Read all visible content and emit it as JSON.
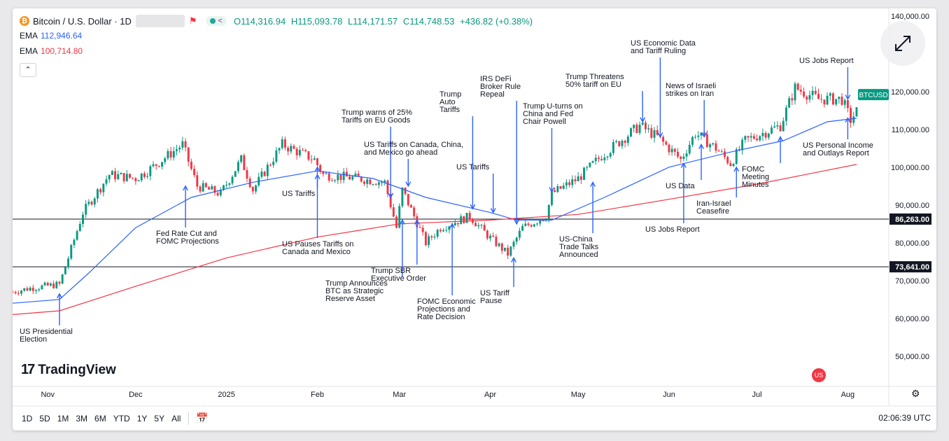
{
  "header": {
    "symbol_title": "Bitcoin / U.S. Dollar · 1D",
    "coin_glyph": "₿",
    "ohlc": {
      "open": "O114,316.94",
      "high": "H115,093.78",
      "low": "L114,171.57",
      "close": "C114,748.53",
      "change": "+436.82 (+0.38%)"
    },
    "ema1_label": "EMA",
    "ema1_value": "112,946.64",
    "ema2_label": "EMA",
    "ema2_value": "100,714.80",
    "collapse_glyph": "⌃"
  },
  "brand": {
    "logo_mark": "17",
    "logo_text": "TradingView"
  },
  "toolbar": {
    "ranges": [
      "1D",
      "5D",
      "1M",
      "3M",
      "6M",
      "YTD",
      "1Y",
      "5Y",
      "All"
    ],
    "clock": "02:06:39 UTC"
  },
  "colors": {
    "up": "#089981",
    "down": "#f23645",
    "ema_fast": "#2962ff",
    "ema_slow": "#f23645",
    "annotation": "#2962ff",
    "price_badge": "#089981"
  },
  "chart_data": {
    "type": "candlestick",
    "title": "Bitcoin / U.S. Dollar · 1D",
    "y_axis": {
      "ticks": [
        "140,000.00",
        "120,000.00",
        "110,000.00",
        "100,000.00",
        "90,000.00",
        "80,000.00",
        "70,000.00",
        "60,000.00",
        "50,000.00"
      ],
      "ylim": [
        42000,
        142000
      ],
      "side": "right"
    },
    "x_axis": {
      "ticks": [
        "Nov",
        "Dec",
        "2025",
        "Feb",
        "Mar",
        "Apr",
        "May",
        "Jun",
        "Jul",
        "Aug"
      ]
    },
    "current_price_label": "BTCUSD",
    "horizontal_levels": [
      {
        "value": 86263,
        "label": "86,263.00"
      },
      {
        "value": 73641,
        "label": "73,641.00"
      }
    ],
    "close_path": [
      [
        "2024-10-20",
        67000
      ],
      [
        "2024-10-26",
        68000
      ],
      [
        "2024-11-05",
        69000
      ],
      [
        "2024-11-08",
        76000
      ],
      [
        "2024-11-13",
        88000
      ],
      [
        "2024-11-22",
        98000
      ],
      [
        "2024-12-01",
        97000
      ],
      [
        "2024-12-05",
        99000
      ],
      [
        "2024-12-17",
        106000
      ],
      [
        "2024-12-22",
        95000
      ],
      [
        "2024-12-30",
        93000
      ],
      [
        "2025-01-06",
        102000
      ],
      [
        "2025-01-10",
        94000
      ],
      [
        "2025-01-20",
        106000
      ],
      [
        "2025-01-31",
        102000
      ],
      [
        "2025-02-03",
        98000
      ],
      [
        "2025-02-15",
        97000
      ],
      [
        "2025-02-24",
        96000
      ],
      [
        "2025-02-28",
        84000
      ],
      [
        "2025-03-02",
        94000
      ],
      [
        "2025-03-10",
        80000
      ],
      [
        "2025-03-15",
        84000
      ],
      [
        "2025-03-25",
        87000
      ],
      [
        "2025-03-31",
        82000
      ],
      [
        "2025-04-07",
        77000
      ],
      [
        "2025-04-12",
        84000
      ],
      [
        "2025-04-20",
        87000
      ],
      [
        "2025-04-22",
        93000
      ],
      [
        "2025-05-01",
        97000
      ],
      [
        "2025-05-09",
        103000
      ],
      [
        "2025-05-22",
        111000
      ],
      [
        "2025-05-28",
        108000
      ],
      [
        "2025-06-05",
        102000
      ],
      [
        "2025-06-10",
        109000
      ],
      [
        "2025-06-17",
        105000
      ],
      [
        "2025-06-22",
        101000
      ],
      [
        "2025-06-27",
        107000
      ],
      [
        "2025-07-09",
        111000
      ],
      [
        "2025-07-14",
        121000
      ],
      [
        "2025-07-22",
        118000
      ],
      [
        "2025-07-30",
        118000
      ],
      [
        "2025-08-02",
        112500
      ],
      [
        "2025-08-04",
        114748
      ]
    ],
    "series": [
      {
        "name": "EMA",
        "last_value": 112946.64,
        "points": [
          [
            "2024-10-20",
            64000
          ],
          [
            "2024-11-05",
            65000
          ],
          [
            "2024-11-15",
            72000
          ],
          [
            "2024-12-01",
            84000
          ],
          [
            "2024-12-20",
            92000
          ],
          [
            "2025-01-10",
            96000
          ],
          [
            "2025-02-01",
            99000
          ],
          [
            "2025-02-20",
            97000
          ],
          [
            "2025-03-10",
            92000
          ],
          [
            "2025-04-01",
            88000
          ],
          [
            "2025-04-10",
            86000
          ],
          [
            "2025-04-22",
            86000
          ],
          [
            "2025-05-10",
            92000
          ],
          [
            "2025-06-01",
            100000
          ],
          [
            "2025-06-22",
            104000
          ],
          [
            "2025-07-10",
            107000
          ],
          [
            "2025-07-25",
            112000
          ],
          [
            "2025-08-04",
            112946
          ]
        ]
      },
      {
        "name": "EMA",
        "last_value": 100714.8,
        "points": [
          [
            "2024-10-20",
            61000
          ],
          [
            "2024-11-05",
            62000
          ],
          [
            "2024-12-01",
            68500
          ],
          [
            "2025-01-01",
            76000
          ],
          [
            "2025-02-01",
            81500
          ],
          [
            "2025-03-01",
            85000
          ],
          [
            "2025-04-01",
            86000
          ],
          [
            "2025-05-01",
            87500
          ],
          [
            "2025-06-01",
            91500
          ],
          [
            "2025-07-01",
            95500
          ],
          [
            "2025-08-04",
            100714
          ]
        ]
      }
    ],
    "annotations": [
      {
        "text": "US Presidential\nElection",
        "date": "2024-11-05",
        "price": 66500
      },
      {
        "text": "Fed Rate Cut and\nFOMC Projections",
        "date": "2024-12-18",
        "price": 95000
      },
      {
        "text": "US Tariffs",
        "date": "2025-02-01",
        "price": 100000
      },
      {
        "text": "US Pauses Tariffs on\nCanada and Mexico",
        "date": "2025-02-01",
        "price": 98000
      },
      {
        "text": "Trump warns of 25%\nTariffs on EU Goods",
        "date": "2025-02-26",
        "price": 92000
      },
      {
        "text": "US Tariffs on Canada, China,\nand Mexico go ahead",
        "date": "2025-03-04",
        "price": 95000
      },
      {
        "text": "Trump Announces\nBTC as Strategic\nReserve Asset",
        "date": "2025-03-02",
        "price": 86000
      },
      {
        "text": "Trump SBR\nExecutive Order",
        "date": "2025-03-07",
        "price": 86000
      },
      {
        "text": "FOMC Economic\nProjections and\nRate Decision",
        "date": "2025-03-19",
        "price": 85000
      },
      {
        "text": "Trump\nAuto\nTariffs",
        "date": "2025-03-26",
        "price": 89000
      },
      {
        "text": "US Tariffs",
        "date": "2025-04-02",
        "price": 88000
      },
      {
        "text": "IRS DeFi\nBroker Rule\nRepeal",
        "date": "2025-04-10",
        "price": 85000
      },
      {
        "text": "US Tariff\nPause",
        "date": "2025-04-09",
        "price": 76000
      },
      {
        "text": "Trump U-turns on\nChina and Fed\nChair Powell",
        "date": "2025-04-22",
        "price": 93500
      },
      {
        "text": "US-China\nTrade Talks\nAnnounced",
        "date": "2025-05-06",
        "price": 96000
      },
      {
        "text": "Trump Threatens\n50% tariff on EU",
        "date": "2025-05-23",
        "price": 112000
      },
      {
        "text": "US Economic Data\nand Tariff Ruling",
        "date": "2025-05-29",
        "price": 108000
      },
      {
        "text": "US Jobs Report",
        "date": "2025-06-06",
        "price": 101000
      },
      {
        "text": "News of Israeli\nstrikes on Iran",
        "date": "2025-06-13",
        "price": 108000
      },
      {
        "text": "US Data",
        "date": "2025-06-12",
        "price": 106000
      },
      {
        "text": "Iran-Israel\nCeasefire",
        "date": "2025-06-24",
        "price": 100000
      },
      {
        "text": "FOMC\nMeeting\nMinutes",
        "date": "2025-07-09",
        "price": 108000
      },
      {
        "text": "US Jobs Report",
        "date": "2025-08-01",
        "price": 118000
      },
      {
        "text": "US Personal Income\nand Outlays Report",
        "date": "2025-08-01",
        "price": 113000
      }
    ]
  }
}
